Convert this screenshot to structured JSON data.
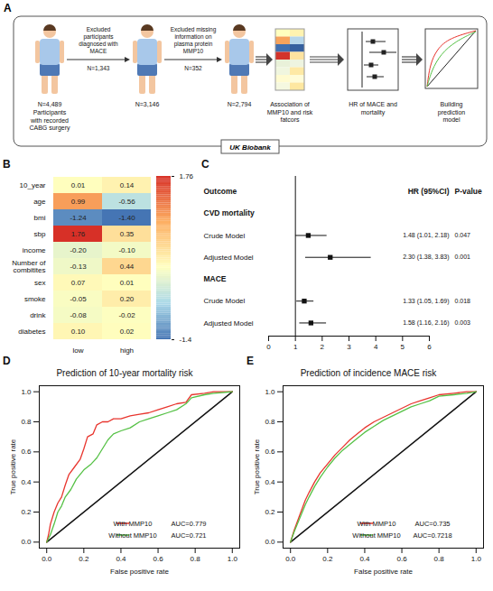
{
  "diagram": {
    "panel": "A",
    "participants": [
      {
        "n": "N=4,489",
        "caption": "Participants with recorded CABG surgery"
      },
      {
        "n": "N=3,146"
      },
      {
        "n": "N=2,794"
      }
    ],
    "exclusions": [
      {
        "text": "Excluded participants diagnosed with MACE",
        "n": "N=1,343"
      },
      {
        "text": "Excluded missing information on plasma protein MMP10",
        "n": "N=352"
      }
    ],
    "steps": [
      "Association of MMP10 and risk fatcors",
      "HR of MACE and mortality",
      "Building prediction model"
    ],
    "source": "UK Biobank"
  },
  "chart_data": [
    {
      "type": "heatmap",
      "panel": "B",
      "x": [
        "low",
        "high"
      ],
      "y": [
        "10_year",
        "age",
        "bmi",
        "sbp",
        "income",
        "Number of combitites",
        "sex",
        "smoke",
        "drink",
        "diabetes"
      ],
      "values": [
        [
          0.01,
          0.14
        ],
        [
          0.99,
          -0.56
        ],
        [
          -1.24,
          -1.4
        ],
        [
          1.76,
          0.35
        ],
        [
          -0.2,
          -0.1
        ],
        [
          -0.13,
          0.44
        ],
        [
          0.07,
          0.01
        ],
        [
          -0.05,
          0.2
        ],
        [
          -0.08,
          -0.02
        ],
        [
          0.1,
          0.02
        ]
      ],
      "value_labels": [
        [
          "0.01",
          "0.14"
        ],
        [
          "0.99",
          "-0.56"
        ],
        [
          "-1.24",
          "-1.40"
        ],
        [
          "1.76",
          "0.35"
        ],
        [
          "-0.20",
          "-0.10"
        ],
        [
          "-0.13",
          "0.44"
        ],
        [
          "0.07",
          "0.01"
        ],
        [
          "-0.05",
          "0.20"
        ],
        [
          "-0.08",
          "-0.02"
        ],
        [
          "0.10",
          "0.02"
        ]
      ],
      "data_labels": true,
      "colorbar": {
        "range": [
          -1.4,
          1.76
        ],
        "ticks": [
          1.76,
          -1.4
        ],
        "colors": [
          "#4575b4",
          "#abd9e9",
          "#ffffbf",
          "#fdae61",
          "#d73027"
        ]
      }
    },
    {
      "type": "forest",
      "panel": "C",
      "headers": [
        "Outcome",
        "HR (95%CI)",
        "P-value"
      ],
      "groups": [
        {
          "name": "CVD mortality",
          "rows": [
            {
              "label": "Crude Model",
              "hr": 1.48,
              "lower": 1.01,
              "upper": 2.18,
              "hr_label": "1.48 (1.01, 2.18)",
              "p": 0.047
            },
            {
              "label": "Adjusted Model",
              "hr": 2.3,
              "lower": 1.38,
              "upper": 3.83,
              "hr_label": "2.30 (1.38, 3.83)",
              "p": 0.001
            }
          ]
        },
        {
          "name": "MACE",
          "rows": [
            {
              "label": "Crude Model",
              "hr": 1.33,
              "lower": 1.05,
              "upper": 1.69,
              "hr_label": "1.33 (1.05, 1.69)",
              "p": 0.018
            },
            {
              "label": "Adjusted Model",
              "hr": 1.58,
              "lower": 1.16,
              "upper": 2.16,
              "hr_label": "1.58 (1.16, 2.16)",
              "p": 0.003
            }
          ]
        }
      ],
      "xlim": [
        0,
        6
      ],
      "xticks": [
        0,
        1,
        2,
        3,
        4,
        5,
        6
      ],
      "reference_line": 1
    },
    {
      "type": "line",
      "panel": "D",
      "title": "Prediction of 10-year mortality risk",
      "x_label": "False positive rate",
      "y_label": "True positive rate",
      "xlim": [
        -0.04,
        1.04
      ],
      "ylim": [
        -0.04,
        1.04
      ],
      "xticks": [
        {
          "value": 0,
          "label": "0.0"
        },
        {
          "value": 0.2,
          "label": "0.2"
        },
        {
          "value": 0.4,
          "label": "0.4"
        },
        {
          "value": 0.6,
          "label": "0.6"
        },
        {
          "value": 0.8,
          "label": "0.8"
        },
        {
          "value": 1,
          "label": "1.0"
        }
      ],
      "yticks": [
        {
          "value": 0,
          "label": "0.0"
        },
        {
          "value": 0.2,
          "label": "0.2"
        },
        {
          "value": 0.4,
          "label": "0.4"
        },
        {
          "value": 0.6,
          "label": "0.6"
        },
        {
          "value": 0.8,
          "label": "0.8"
        },
        {
          "value": 1,
          "label": "1.0"
        }
      ],
      "legend": "bottom-right",
      "reference_line": {
        "x": [
          0,
          1
        ],
        "y": [
          0,
          1
        ]
      },
      "series": [
        {
          "name": "With MMP10",
          "color": "#e8352e",
          "auc_label": "AUC=0.779",
          "x": [
            0,
            0.01,
            0.02,
            0.04,
            0.06,
            0.08,
            0.1,
            0.12,
            0.15,
            0.18,
            0.2,
            0.22,
            0.25,
            0.27,
            0.3,
            0.33,
            0.36,
            0.4,
            0.45,
            0.5,
            0.55,
            0.6,
            0.65,
            0.7,
            0.75,
            0.78,
            0.85,
            0.9,
            1
          ],
          "y": [
            0,
            0.05,
            0.12,
            0.2,
            0.26,
            0.3,
            0.38,
            0.45,
            0.5,
            0.55,
            0.62,
            0.7,
            0.72,
            0.78,
            0.8,
            0.8,
            0.82,
            0.82,
            0.84,
            0.85,
            0.86,
            0.88,
            0.9,
            0.92,
            0.93,
            0.98,
            0.99,
            1,
            1
          ]
        },
        {
          "name": "Without MMP10",
          "color": "#55c145",
          "auc_label": "AUC=0.721",
          "x": [
            0,
            0.02,
            0.04,
            0.06,
            0.08,
            0.1,
            0.13,
            0.16,
            0.2,
            0.24,
            0.27,
            0.3,
            0.33,
            0.36,
            0.4,
            0.45,
            0.5,
            0.55,
            0.6,
            0.65,
            0.7,
            0.75,
            0.78,
            0.85,
            0.9,
            1
          ],
          "y": [
            0,
            0.05,
            0.12,
            0.2,
            0.24,
            0.3,
            0.35,
            0.42,
            0.48,
            0.52,
            0.56,
            0.62,
            0.68,
            0.72,
            0.74,
            0.76,
            0.8,
            0.82,
            0.84,
            0.86,
            0.88,
            0.92,
            0.96,
            0.98,
            0.99,
            1
          ]
        }
      ]
    },
    {
      "type": "line",
      "panel": "E",
      "title": "Prediction of incidence MACE risk",
      "x_label": "False positive rate",
      "y_label": "True positive rate",
      "xlim": [
        -0.04,
        1.04
      ],
      "ylim": [
        -0.04,
        1.04
      ],
      "xticks": [
        {
          "value": 0,
          "label": "0.0"
        },
        {
          "value": 0.2,
          "label": "0.2"
        },
        {
          "value": 0.4,
          "label": "0.4"
        },
        {
          "value": 0.6,
          "label": "0.6"
        },
        {
          "value": 0.8,
          "label": "0.8"
        },
        {
          "value": 1,
          "label": "1.0"
        }
      ],
      "yticks": [
        {
          "value": 0,
          "label": "0.0"
        },
        {
          "value": 0.2,
          "label": "0.2"
        },
        {
          "value": 0.4,
          "label": "0.4"
        },
        {
          "value": 0.6,
          "label": "0.6"
        },
        {
          "value": 0.8,
          "label": "0.8"
        },
        {
          "value": 1,
          "label": "1.0"
        }
      ],
      "legend": "bottom-right",
      "reference_line": {
        "x": [
          0,
          1
        ],
        "y": [
          0,
          1
        ]
      },
      "series": [
        {
          "name": "With MMP10",
          "color": "#e8352e",
          "auc_label": "AUC=0.735",
          "x": [
            0,
            0.02,
            0.05,
            0.08,
            0.1,
            0.13,
            0.16,
            0.2,
            0.24,
            0.28,
            0.32,
            0.36,
            0.4,
            0.45,
            0.5,
            0.55,
            0.6,
            0.65,
            0.7,
            0.75,
            0.8,
            0.88,
            0.95,
            1
          ],
          "y": [
            0,
            0.08,
            0.18,
            0.28,
            0.33,
            0.4,
            0.46,
            0.52,
            0.58,
            0.63,
            0.68,
            0.72,
            0.76,
            0.8,
            0.83,
            0.86,
            0.89,
            0.92,
            0.94,
            0.96,
            0.98,
            0.99,
            1,
            1
          ]
        },
        {
          "name": "Without MMP10",
          "color": "#55c145",
          "auc_label": "AUC=0.7218",
          "x": [
            0,
            0.02,
            0.05,
            0.08,
            0.1,
            0.13,
            0.16,
            0.2,
            0.24,
            0.28,
            0.32,
            0.36,
            0.4,
            0.45,
            0.5,
            0.55,
            0.6,
            0.65,
            0.7,
            0.75,
            0.8,
            0.88,
            0.95,
            1
          ],
          "y": [
            0,
            0.07,
            0.16,
            0.25,
            0.3,
            0.37,
            0.43,
            0.5,
            0.56,
            0.61,
            0.65,
            0.69,
            0.73,
            0.77,
            0.81,
            0.84,
            0.87,
            0.9,
            0.92,
            0.94,
            0.97,
            0.98,
            0.99,
            1
          ]
        }
      ]
    }
  ]
}
